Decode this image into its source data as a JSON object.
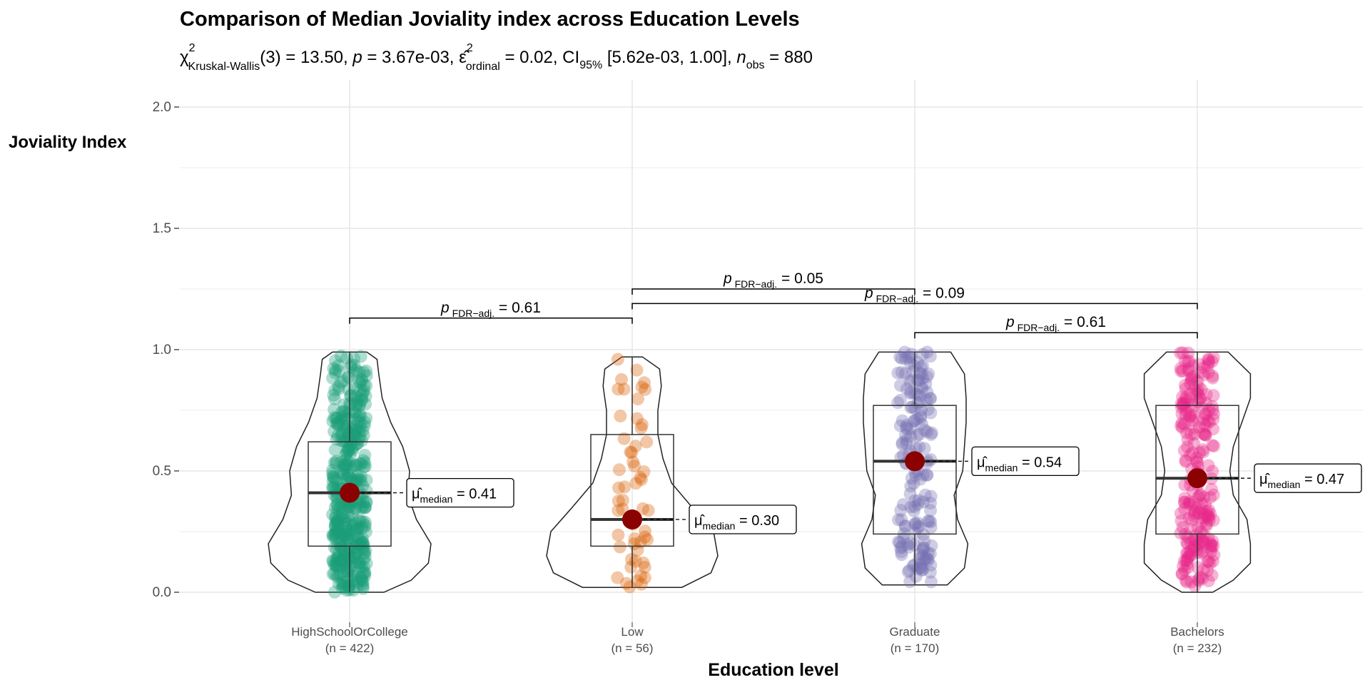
{
  "chart_data": {
    "type": "violin",
    "title": "Comparison of Median Joviality index across Education Levels",
    "subtitle": {
      "stat_symbol": "χ",
      "stat_sup": "2",
      "stat_sub": "Kruskal-Wallis",
      "stat_value": "(3) = 13.50, ",
      "p_label": "p",
      "p_value": " = 3.67e-03, ",
      "effect_symbol": "ε̂",
      "effect_sup": "2",
      "effect_sub": "ordinal",
      "effect_value": " = 0.02, CI",
      "ci_sub": "95%",
      "ci_value": " [5.62e-03, 1.00], ",
      "n_label": "n",
      "n_sub": "obs",
      "n_value": " = 880"
    },
    "xlabel": "Education level",
    "ylabel": "Joviality Index",
    "ylim": [
      -0.08,
      2.1
    ],
    "yticks": [
      0.0,
      0.5,
      1.0,
      1.5,
      2.0
    ],
    "ytick_labels": [
      "0.0",
      "0.5",
      "1.0",
      "1.5",
      "2.0"
    ],
    "grid": true,
    "categories": [
      "HighSchoolOrCollege",
      "Low",
      "Graduate",
      "Bachelors"
    ],
    "n_labels": [
      "(n = 422)",
      "(n = 56)",
      "(n = 170)",
      "(n = 232)"
    ],
    "colors": [
      "#1B9E77",
      "#D95F02",
      "#7570B3",
      "#E7298A"
    ],
    "median_point_color": "#8B0000",
    "groups": [
      {
        "name": "HighSchoolOrCollege",
        "n": 422,
        "median": 0.41,
        "q1": 0.19,
        "q3": 0.62,
        "min": 0.0,
        "max": 0.99,
        "median_label": "= 0.41",
        "density": [
          [
            0.0,
            0.4
          ],
          [
            0.05,
            0.72
          ],
          [
            0.12,
            0.92
          ],
          [
            0.2,
            0.95
          ],
          [
            0.3,
            0.78
          ],
          [
            0.4,
            0.68
          ],
          [
            0.5,
            0.7
          ],
          [
            0.6,
            0.62
          ],
          [
            0.7,
            0.48
          ],
          [
            0.8,
            0.38
          ],
          [
            0.9,
            0.34
          ],
          [
            0.96,
            0.32
          ],
          [
            0.99,
            0.2
          ]
        ]
      },
      {
        "name": "Low",
        "n": 56,
        "median": 0.3,
        "q1": 0.19,
        "q3": 0.65,
        "min": 0.02,
        "max": 0.97,
        "median_label": "= 0.30",
        "density": [
          [
            0.02,
            0.58
          ],
          [
            0.08,
            0.92
          ],
          [
            0.15,
            1.0
          ],
          [
            0.25,
            0.95
          ],
          [
            0.35,
            0.7
          ],
          [
            0.45,
            0.46
          ],
          [
            0.55,
            0.36
          ],
          [
            0.65,
            0.3
          ],
          [
            0.75,
            0.3
          ],
          [
            0.85,
            0.34
          ],
          [
            0.92,
            0.32
          ],
          [
            0.97,
            0.12
          ]
        ]
      },
      {
        "name": "Graduate",
        "n": 170,
        "median": 0.54,
        "q1": 0.24,
        "q3": 0.77,
        "min": 0.03,
        "max": 0.99,
        "median_label": "= 0.54",
        "density": [
          [
            0.03,
            0.38
          ],
          [
            0.1,
            0.58
          ],
          [
            0.2,
            0.62
          ],
          [
            0.3,
            0.5
          ],
          [
            0.4,
            0.46
          ],
          [
            0.5,
            0.56
          ],
          [
            0.6,
            0.58
          ],
          [
            0.7,
            0.6
          ],
          [
            0.8,
            0.6
          ],
          [
            0.9,
            0.58
          ],
          [
            0.99,
            0.42
          ]
        ]
      },
      {
        "name": "Bachelors",
        "n": 232,
        "median": 0.47,
        "q1": 0.24,
        "q3": 0.77,
        "min": 0.0,
        "max": 0.99,
        "median_label": "= 0.47",
        "density": [
          [
            0.0,
            0.18
          ],
          [
            0.05,
            0.42
          ],
          [
            0.12,
            0.62
          ],
          [
            0.2,
            0.62
          ],
          [
            0.3,
            0.58
          ],
          [
            0.4,
            0.42
          ],
          [
            0.5,
            0.38
          ],
          [
            0.6,
            0.42
          ],
          [
            0.7,
            0.52
          ],
          [
            0.8,
            0.62
          ],
          [
            0.9,
            0.62
          ],
          [
            0.99,
            0.36
          ]
        ]
      }
    ],
    "median_label_prefix": "μ̂",
    "median_label_sub": "median",
    "comparisons": [
      {
        "from": "HighSchoolOrCollege",
        "to": "Low",
        "y": 1.13,
        "p_label": "p",
        "p_sub": "FDR−adj.",
        "value": "= 0.61"
      },
      {
        "from": "Low",
        "to": "Graduate",
        "y": 1.25,
        "p_label": "p",
        "p_sub": "FDR−adj.",
        "value": "= 0.05"
      },
      {
        "from": "Low",
        "to": "Bachelors",
        "y": 1.19,
        "p_label": "p",
        "p_sub": "FDR−adj.",
        "value": "= 0.09"
      },
      {
        "from": "Graduate",
        "to": "Bachelors",
        "y": 1.07,
        "p_label": "p",
        "p_sub": "FDR−adj.",
        "value": "= 0.61"
      }
    ]
  }
}
